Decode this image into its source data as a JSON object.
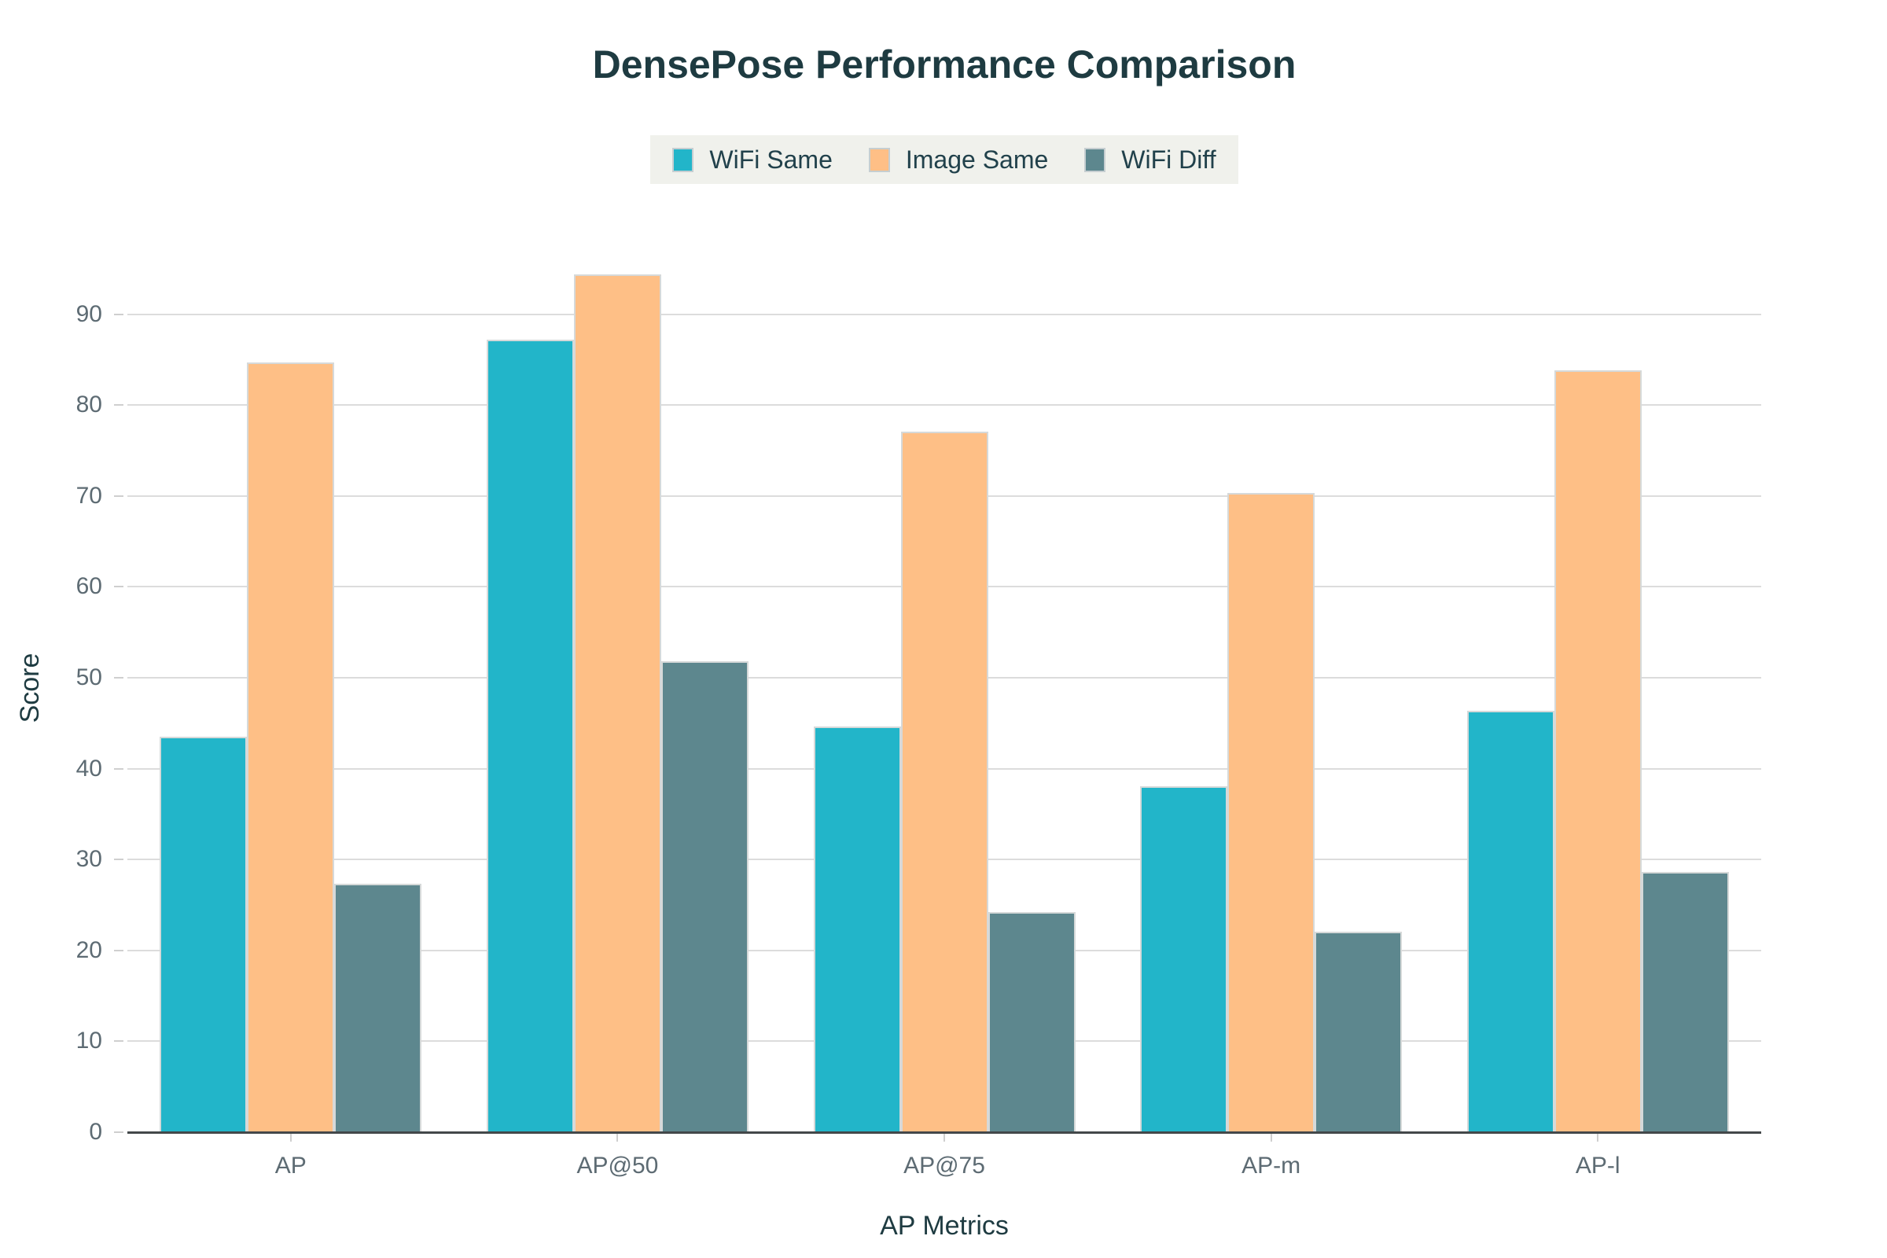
{
  "chart_data": {
    "type": "bar",
    "title": "DensePose Performance Comparison",
    "xlabel": "AP Metrics",
    "ylabel": "Score",
    "categories": [
      "AP",
      "AP@50",
      "AP@75",
      "AP-m",
      "AP-l"
    ],
    "series": [
      {
        "name": "WiFi Same",
        "color": "#22B5C9",
        "values": [
          43.5,
          87.2,
          44.6,
          38.1,
          46.4
        ]
      },
      {
        "name": "Image Same",
        "color": "#FEBF86",
        "values": [
          84.7,
          94.4,
          77.1,
          70.3,
          83.8
        ]
      },
      {
        "name": "WiFi Diff",
        "color": "#5D878E",
        "values": [
          27.3,
          51.8,
          24.2,
          22.1,
          28.6
        ]
      }
    ],
    "yticks": [
      0,
      10,
      20,
      30,
      40,
      50,
      60,
      70,
      80,
      90
    ],
    "ylim": [
      0,
      97.75
    ],
    "grid": true,
    "legend_position": "top"
  },
  "colors": {
    "title_text": "#1e3b41",
    "axis_title_text": "#1e3b41",
    "tick_text": "#5d6b73",
    "gridline": "#dcdcdc",
    "axis_line": "#43484a",
    "legend_background": "#f0f1ec",
    "swatch_border": "#c6ced1",
    "bar_border": "#d6d9d9",
    "page_background": "#ffffff"
  }
}
